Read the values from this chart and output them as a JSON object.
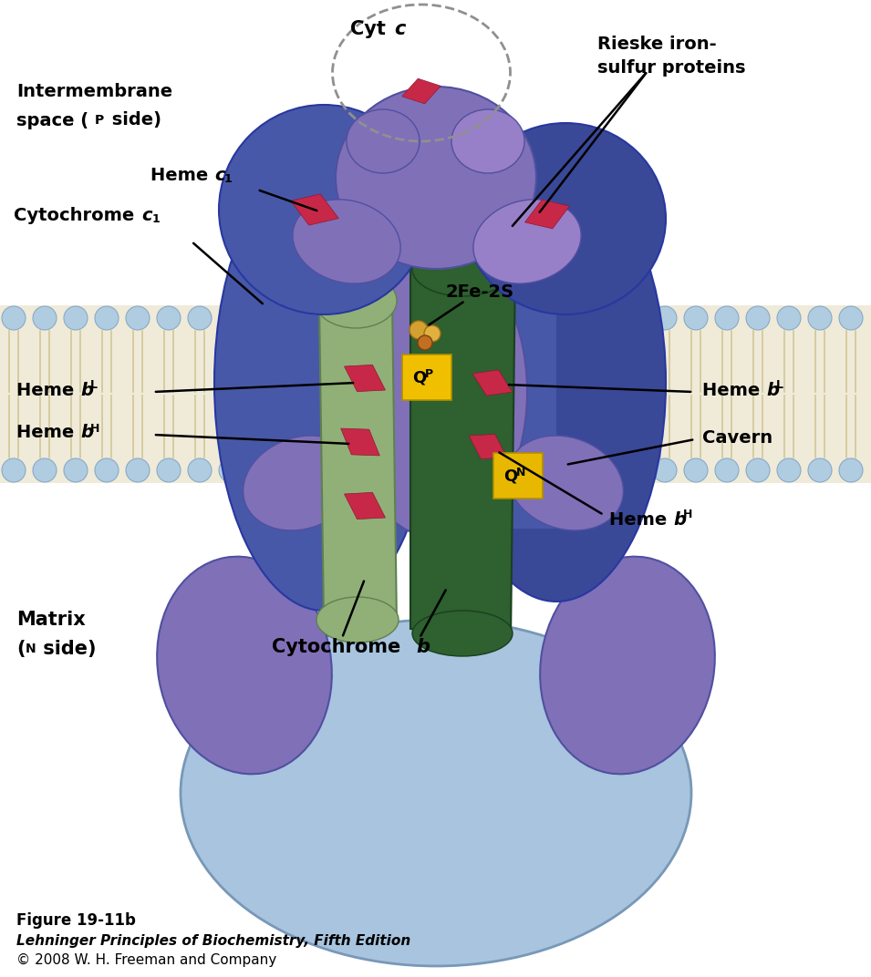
{
  "bg_color": "#ffffff",
  "fig_width": 9.55,
  "fig_height": 10.72,
  "membrane_color": "#f0ead8",
  "mem_circle_color": "#b0cce0",
  "light_blue_color": "#a8c4de",
  "purple_color": "#8070b8",
  "purple_dark_color": "#6060a8",
  "dark_blue_color": "#4858a8",
  "dark_blue2_color": "#3a4898",
  "light_green_color": "#90b078",
  "dark_green_color": "#2e6030",
  "heme_color": "#c82848",
  "qp_color": "#f0c000",
  "qn_color": "#e8b800",
  "ball_gold": "#d4a030",
  "ball_orange": "#c87830",
  "label_fontsize": 14,
  "label_fontweight": "bold",
  "caption_line1": "Figure 19-11b",
  "caption_line2": "Lehninger Principles of Biochemistry, Fifth Edition",
  "caption_line3": "© 2008 W. H. Freeman and Company"
}
